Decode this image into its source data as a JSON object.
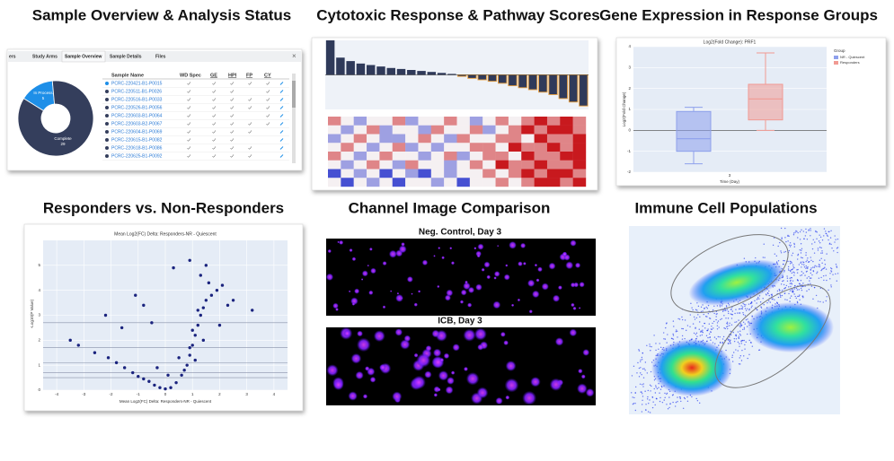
{
  "panels": [
    {
      "title": "Sample Overview & Analysis Status",
      "tabs": [
        "ers",
        "Study Arms",
        "Sample Overview",
        "Sample Details",
        "Files"
      ],
      "close": "×",
      "columns": [
        "Sample Name",
        "WD Spec",
        "GE",
        "HPI",
        "FP",
        "CY"
      ],
      "rows": [
        "PCRC-220421-B1-P0015",
        "PCRC-220511-B1-P0026",
        "PCRC-220516-B1-P0033",
        "PCRC-220526-B1-P0056",
        "PCRC-220603-B1-P0064",
        "PCRC-220603-B2-P0067",
        "PCRC-220604-B1-P0069",
        "PCRC-220615-B1-P0082",
        "PCRC-220618-B1-P0086",
        "PCRC-220625-B1-P0092"
      ],
      "pie": {
        "type": "pie",
        "labels": [
          "In Process",
          "Complete"
        ],
        "values": [
          5,
          29
        ],
        "colors": [
          "#1e8fe8",
          "#343e5c"
        ]
      }
    },
    {
      "title": "Cytotoxic Response & Pathway Scores",
      "bars": {
        "type": "bar",
        "values": [
          7,
          3.5,
          2.8,
          2.3,
          2,
          1.7,
          1.4,
          1.2,
          1,
          0.8,
          0.6,
          0.4,
          0.2,
          -0.3,
          -0.7,
          -1,
          -1.3,
          -1.7,
          -2.2,
          -2.6,
          -3,
          -3.5,
          -4,
          -4.8,
          -5.5,
          -6.3
        ],
        "ylim": [
          -7,
          7
        ],
        "positive_color": "#2f3a5a",
        "negative_color": "#e8a040"
      },
      "heatmap": {
        "type": "heatmap",
        "vlim": [
          -2,
          2
        ],
        "values": [
          [
            1,
            0,
            -1,
            0,
            0,
            1,
            -1,
            0,
            0,
            1,
            0,
            -1,
            0,
            1,
            0,
            1,
            2,
            1,
            2,
            1
          ],
          [
            0,
            -1,
            0,
            1,
            -1,
            0,
            0,
            -1,
            1,
            0,
            0,
            1,
            -1,
            0,
            1,
            2,
            1,
            2,
            2,
            1
          ],
          [
            -1,
            0,
            1,
            0,
            -1,
            -1,
            0,
            1,
            0,
            -1,
            1,
            0,
            0,
            1,
            1,
            0,
            2,
            1,
            1,
            2
          ],
          [
            0,
            1,
            0,
            -1,
            0,
            1,
            -1,
            0,
            -1,
            0,
            0,
            1,
            1,
            0,
            2,
            1,
            1,
            2,
            1,
            2
          ],
          [
            1,
            0,
            -1,
            0,
            1,
            0,
            0,
            -1,
            0,
            1,
            -1,
            0,
            1,
            1,
            0,
            2,
            1,
            1,
            2,
            2
          ],
          [
            0,
            -1,
            0,
            1,
            0,
            -1,
            1,
            0,
            0,
            -1,
            0,
            1,
            0,
            2,
            1,
            1,
            2,
            1,
            1,
            2
          ],
          [
            -2,
            0,
            -1,
            0,
            -2,
            0,
            -1,
            -2,
            0,
            -1,
            0,
            0,
            1,
            0,
            1,
            2,
            1,
            2,
            2,
            1
          ],
          [
            0,
            -2,
            0,
            -1,
            0,
            -2,
            0,
            0,
            -1,
            0,
            -2,
            0,
            0,
            1,
            0,
            1,
            2,
            2,
            1,
            2
          ]
        ]
      }
    },
    {
      "title": "Gene Expression in Response Groups",
      "box": {
        "type": "box",
        "title": "Log2(Fold Change): PRF1",
        "y_label": "Log2(Fold Change)",
        "x_label": "Time (Day)",
        "categories": [
          "3"
        ],
        "legend_title": "Group",
        "ylim": [
          -2,
          4
        ],
        "yticks": [
          -2,
          -1,
          0,
          1,
          2,
          3,
          4
        ],
        "series": [
          {
            "name": "NR - Quiescent",
            "color": "#8ea0ec",
            "min": -1.6,
            "q1": -1.0,
            "median": -0.4,
            "q3": 0.9,
            "max": 1.1
          },
          {
            "name": "Responders",
            "color": "#f19a93",
            "min": 0,
            "q1": 0.5,
            "median": 1.5,
            "q3": 2.2,
            "max": 3.7
          }
        ]
      }
    },
    {
      "title": "Responders vs. Non-Responders",
      "scatter": {
        "type": "scatter",
        "title": "Mean Log2(FC) Delta: Responders-NR - Quiescent",
        "x_label": "Mean Log2(FC) Delta: Responders-NR - Quiescent",
        "y_label": "-Log10(P Value)",
        "xlim": [
          -4.5,
          4.5
        ],
        "ylim": [
          0,
          6
        ],
        "xticks": [
          -4,
          -3,
          -2,
          -1,
          0,
          1,
          2,
          3,
          4
        ],
        "yticks": [
          0,
          1,
          2,
          3,
          4,
          5
        ],
        "color": "#1a237e",
        "hlines": [
          2.7,
          1.7,
          1.1,
          0.7,
          0.5
        ],
        "x": [
          -3.2,
          -2.6,
          -2.1,
          -1.8,
          -1.5,
          -1.2,
          -1.0,
          -0.8,
          -0.6,
          -0.4,
          -0.2,
          0,
          0.2,
          0.4,
          0.6,
          0.8,
          0.9,
          1.0,
          1.1,
          1.2,
          1.3,
          1.4,
          1.5,
          1.7,
          1.9,
          2.1,
          1.0,
          1.2,
          0.7,
          0.9,
          1.6,
          1.3,
          2.5,
          3.2,
          2.3,
          -1.1,
          -0.8,
          -2.2,
          -1.6,
          -0.5,
          0.3,
          0.9,
          1.5,
          -3.5,
          -0.3,
          0.1,
          1.1,
          1.4,
          0.5,
          2.0
        ],
        "y": [
          1.8,
          1.5,
          1.3,
          1.1,
          0.9,
          0.7,
          0.55,
          0.45,
          0.35,
          0.2,
          0.1,
          0.05,
          0.1,
          0.3,
          0.6,
          1.0,
          1.4,
          1.8,
          2.2,
          2.6,
          3.0,
          3.3,
          3.6,
          3.8,
          4.0,
          4.2,
          2.4,
          3.2,
          0.8,
          1.7,
          4.3,
          4.6,
          3.6,
          3.2,
          3.4,
          3.8,
          3.4,
          3.0,
          2.5,
          2.7,
          4.9,
          5.2,
          5.0,
          2.0,
          0.9,
          0.6,
          1.2,
          2.0,
          1.3,
          2.6
        ]
      }
    },
    {
      "title": "Channel Image Comparison",
      "images": [
        "Neg. Control, Day 3",
        "ICB, Day 3"
      ]
    },
    {
      "title": "Immune Cell Populations"
    }
  ]
}
